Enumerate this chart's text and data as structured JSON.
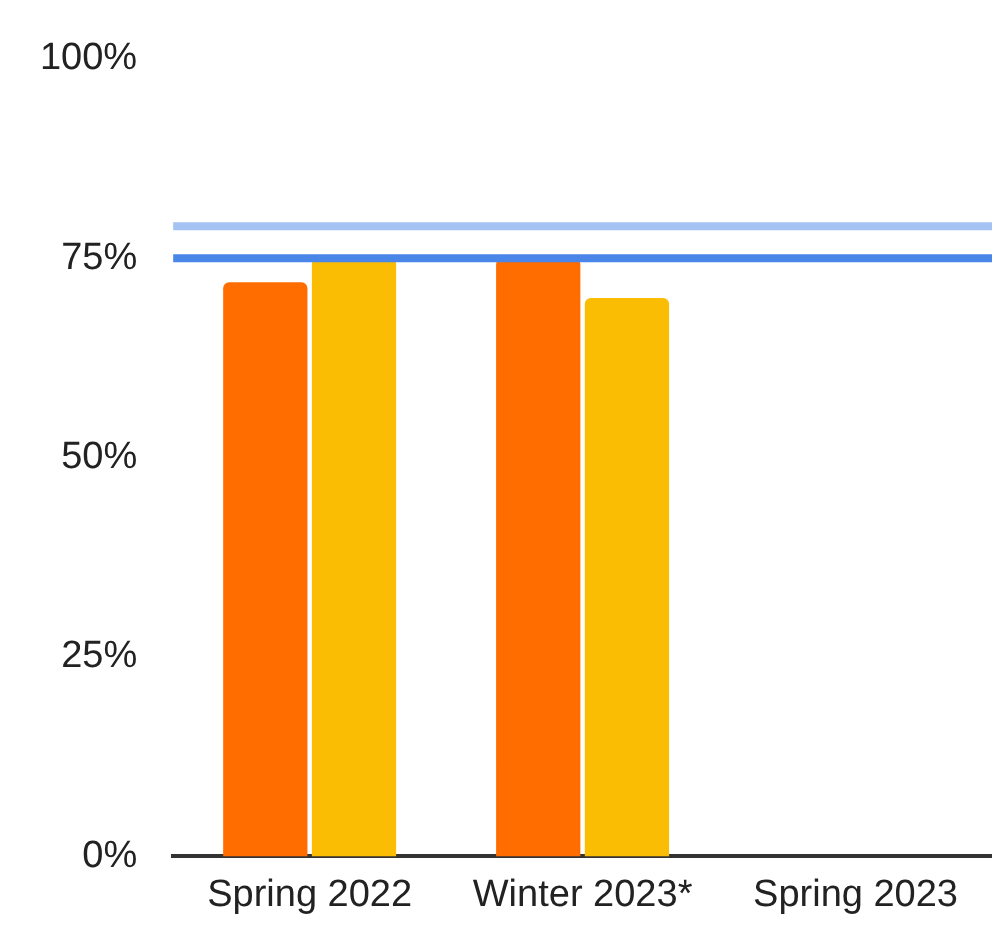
{
  "chart_data": {
    "type": "bar",
    "categories": [
      "Spring 2022",
      "Winter 2023*",
      "Spring 2023"
    ],
    "series": [
      {
        "color": "#ff6d01",
        "values": [
          72,
          75,
          null
        ]
      },
      {
        "color": "#fbbc04",
        "values": [
          75,
          70,
          null
        ]
      }
    ],
    "ylim": [
      0,
      100
    ],
    "yticks": [
      {
        "value": 0,
        "label": "0%"
      },
      {
        "value": 25,
        "label": "25%"
      },
      {
        "value": 50,
        "label": "50%"
      },
      {
        "value": 75,
        "label": "75%"
      },
      {
        "value": 100,
        "label": "100%"
      }
    ],
    "ref_lines": [
      {
        "axis": "y",
        "value": 79,
        "color": "#a4c2f4"
      },
      {
        "axis": "y",
        "value": 75,
        "color": "#4a86e8"
      }
    ],
    "grid": false,
    "legend": false
  }
}
